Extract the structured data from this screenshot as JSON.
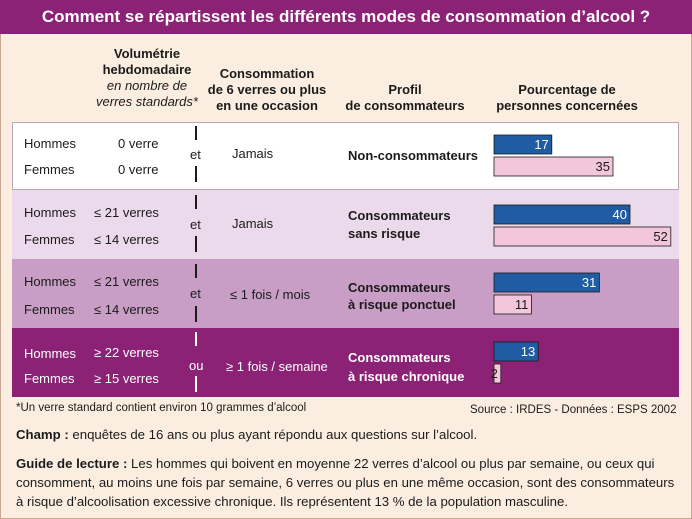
{
  "title": "Comment se répartissent les différents modes de consommation d’alcool ?",
  "headers": {
    "volume_line1": "Volumétrie",
    "volume_line2": "hebdomadaire",
    "volume_sub1": "en nombre de",
    "volume_sub2": "verres standards*",
    "six_line1": "Consommation",
    "six_line2": "de 6 verres ou plus",
    "six_line3": "en une occasion",
    "profil_line1": "Profil",
    "profil_line2": "de consommateurs",
    "pct_line1": "Pourcentage de",
    "pct_line2": "personnes concernées"
  },
  "rows": [
    {
      "hommes_label": "Hommes",
      "femmes_label": "Femmes",
      "hommes_volume": "0 verre",
      "femmes_volume": "0 verre",
      "connector": "et",
      "six": "Jamais",
      "profil_line1": "Non-consommateurs",
      "profil_line2": ""
    },
    {
      "hommes_label": "Hommes",
      "femmes_label": "Femmes",
      "hommes_volume": "≤ 21 verres",
      "femmes_volume": "≤ 14 verres",
      "connector": "et",
      "six": "Jamais",
      "profil_line1": "Consommateurs",
      "profil_line2": "sans risque"
    },
    {
      "hommes_label": "Hommes",
      "femmes_label": "Femmes",
      "hommes_volume": "≤ 21 verres",
      "femmes_volume": "≤ 14 verres",
      "connector": "et",
      "six": "≤ 1 fois / mois",
      "profil_line1": "Consommateurs",
      "profil_line2": "à risque ponctuel"
    },
    {
      "hommes_label": "Hommes",
      "femmes_label": "Femmes",
      "hommes_volume": "≥ 22 verres",
      "femmes_volume": "≥ 15 verres",
      "connector": "ou",
      "six": "≥ 1 fois / semaine",
      "profil_line1": "Consommateurs",
      "profil_line2": "à risque chronique"
    }
  ],
  "colors": {
    "title_bg": "#8c2275",
    "band1": "#ffffff",
    "band2": "#ebdaeb",
    "band3": "#c89ec6",
    "band4": "#8c2275",
    "hommes_bar": "#1f5ca3",
    "femmes_bar": "#f4c6db",
    "background": "#fbeee1"
  },
  "chart_data": {
    "type": "bar",
    "orientation": "horizontal",
    "categories": [
      "Non-consommateurs",
      "Consommateurs sans risque",
      "Consommateurs à risque ponctuel",
      "Consommateurs à risque chronique"
    ],
    "series": [
      {
        "name": "Hommes",
        "values": [
          17,
          40,
          31,
          13
        ]
      },
      {
        "name": "Femmes",
        "values": [
          35,
          52,
          11,
          2
        ]
      }
    ],
    "xlim": [
      0,
      52
    ],
    "grid": false
  },
  "footnote": "*Un verre standard contient environ 10 grammes d’alcool",
  "source": "Source : IRDES - Données : ESPS 2002",
  "champ_label": "Champ :",
  "champ_text": " enquêtes de 16 ans ou plus ayant répondu aux questions sur l’alcool.",
  "guide_label": "Guide de lecture :",
  "guide_text": " Les hommes qui boivent en moyenne 22 verres d’alcool ou plus par semaine, ou ceux qui consomment, au moins une fois par semaine, 6 verres ou plus en une même occasion, sont des consommateurs à risque d’alcoolisation excessive chronique. Ils représentent 13 % de la population masculine."
}
